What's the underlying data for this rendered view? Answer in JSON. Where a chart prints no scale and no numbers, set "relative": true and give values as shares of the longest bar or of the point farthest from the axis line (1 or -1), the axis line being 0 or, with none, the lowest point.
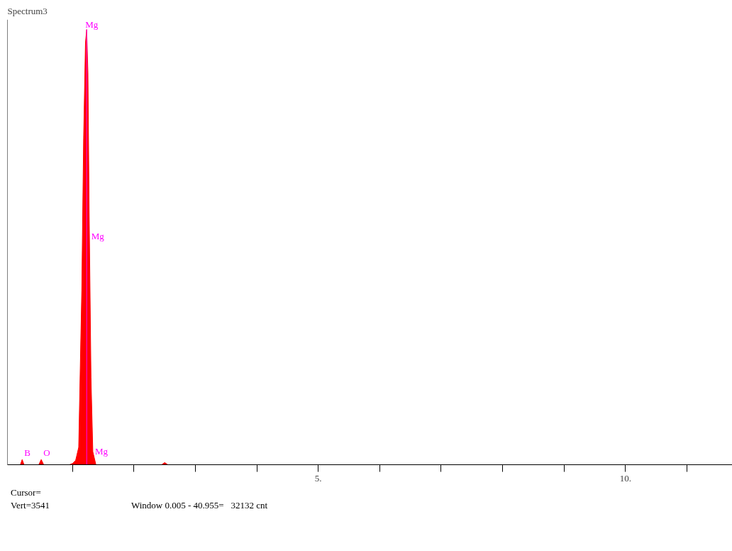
{
  "chart_data": {
    "type": "area",
    "title": "Spectrum3",
    "relative": true,
    "x": [
      0.0,
      0.15,
      0.18,
      0.21,
      0.45,
      0.49,
      0.53,
      0.95,
      1.0,
      1.05,
      1.1,
      1.15,
      1.18,
      1.21,
      1.23,
      1.25,
      1.27,
      1.3,
      1.33,
      1.38,
      2.45,
      2.5,
      2.55,
      11.7
    ],
    "series": [
      {
        "color": "#ff0000",
        "values": [
          0,
          0,
          0.012,
          0,
          0,
          0.012,
          0,
          0,
          0.003,
          0.01,
          0.04,
          0.4,
          0.75,
          0.97,
          1.0,
          0.9,
          0.58,
          0.2,
          0.03,
          0,
          0,
          0.005,
          0,
          0
        ]
      }
    ],
    "xlim": [
      -0.06,
      11.74
    ],
    "xticks": [
      {
        "value": 1,
        "label": null
      },
      {
        "value": 2,
        "label": null
      },
      {
        "value": 3,
        "label": null
      },
      {
        "value": 4,
        "label": null
      },
      {
        "value": 5,
        "label": "5."
      },
      {
        "value": 6,
        "label": null
      },
      {
        "value": 7,
        "label": null
      },
      {
        "value": 8,
        "label": null
      },
      {
        "value": 9,
        "label": null
      },
      {
        "value": 10,
        "label": "10."
      },
      {
        "value": 11,
        "label": null
      }
    ],
    "ref_lines": [
      {
        "axis": "x",
        "value": 1.23,
        "label": "Mg",
        "color": "#ff00ff"
      }
    ],
    "annotations": [
      {
        "text": "Mg",
        "x": 1.27,
        "y": 0.51
      },
      {
        "text": "Mg",
        "x": 1.33,
        "y": 0.015
      },
      {
        "text": "B",
        "x": 0.18,
        "y": 0.012
      },
      {
        "text": "O",
        "x": 0.49,
        "y": 0.012
      },
      "Cursor=",
      "Vert=3541",
      "Window 0.005 - 40.955=   32132 cnt"
    ],
    "grid": false
  }
}
